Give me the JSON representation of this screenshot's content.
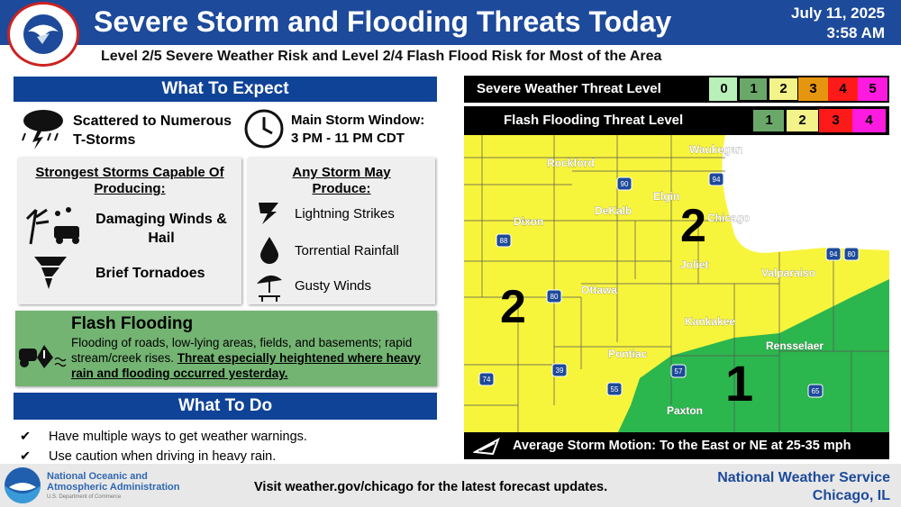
{
  "header": {
    "title": "Severe Storm and Flooding Threats Today",
    "date": "July 11, 2025",
    "time": "3:58 AM",
    "logo_text": "NATIONAL WEATHER SERVICE"
  },
  "subtitle": "Level 2/5 Severe Weather Risk and Level 2/4 Flash Flood Risk for Most of the Area",
  "expect": {
    "heading": "What To Expect",
    "storms": "Scattered to Numerous T-Storms",
    "window_label": "Main Storm Window:",
    "window_value": "3 PM - 11 PM CDT",
    "strongest": {
      "heading": "Strongest Storms Capable Of Producing:",
      "items": [
        "Damaging Winds & Hail",
        "Brief Tornadoes"
      ]
    },
    "any": {
      "heading": "Any Storm May Produce:",
      "items": [
        "Lightning Strikes",
        "Torrential Rainfall",
        "Gusty Winds"
      ]
    },
    "flood": {
      "heading": "Flash Flooding",
      "text": "Flooding of roads, low-lying areas, fields, and basements; rapid stream/creek rises.",
      "emphasis": "Threat especially heightened where heavy rain and flooding occurred yesterday."
    }
  },
  "todo": {
    "heading": "What To Do",
    "items": [
      "Have multiple ways to get weather warnings.",
      "Use caution when driving in heavy rain."
    ]
  },
  "threat": {
    "severe": {
      "label": "Severe Weather Threat Level",
      "levels": [
        "0",
        "1",
        "2",
        "3",
        "4",
        "5"
      ],
      "colors": [
        "#b9f0b9",
        "#6aa86a",
        "#f3f38a",
        "#e6960e",
        "#ff1a1a",
        "#ff1ae0"
      ],
      "highlighted": [
        "1",
        "2"
      ]
    },
    "flood": {
      "label": "Flash Flooding Threat Level",
      "levels": [
        "1",
        "2",
        "3",
        "4"
      ],
      "colors": [
        "#6aa86a",
        "#f3f38a",
        "#ff1a1a",
        "#ff1ae0"
      ],
      "highlighted": [
        "1",
        "2"
      ]
    }
  },
  "map": {
    "colors": {
      "level2": "#f7f43c",
      "level1": "#2cb64e"
    },
    "cities": [
      "Rockford",
      "Waukegan",
      "Elgin",
      "DeKalb",
      "Chicago",
      "Dixon",
      "Joliet",
      "Valparaiso",
      "Ottawa",
      "Kankakee",
      "Rensselaer",
      "Pontiac",
      "Paxton"
    ],
    "interstates": [
      "90",
      "94",
      "88",
      "80",
      "94",
      "80",
      "39",
      "55",
      "57",
      "74",
      "65"
    ],
    "risk_labels": [
      "2",
      "2",
      "1"
    ],
    "motion": "Average Storm Motion: To the East or NE at 25-35 mph"
  },
  "footer": {
    "noaa_line1": "National Oceanic and",
    "noaa_line2": "Atmospheric Administration",
    "noaa_line3": "U.S. Department of Commerce",
    "noaa_logo": "NOAA",
    "visit": "Visit weather.gov/chicago for the latest forecast updates.",
    "office1": "National Weather Service",
    "office2": "Chicago, IL"
  }
}
